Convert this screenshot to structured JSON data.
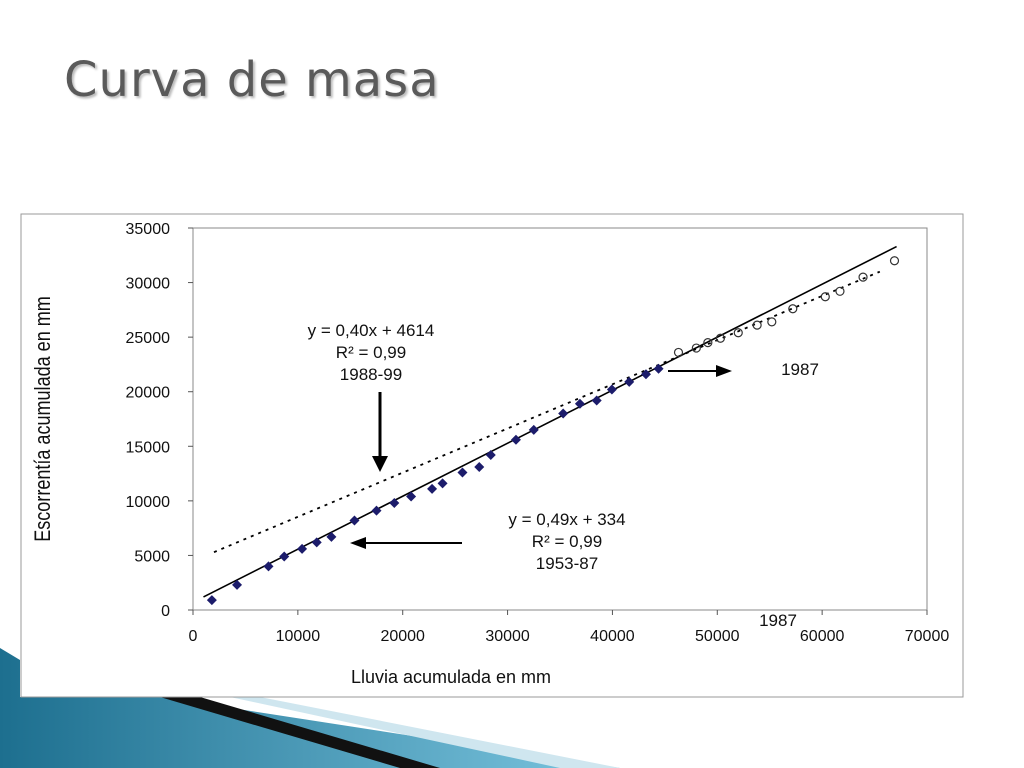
{
  "title": "Curva de masa",
  "chart_data": {
    "type": "scatter",
    "xlabel": "Lluvia acumulada en mm",
    "ylabel": "Escorrentía acumulada en mm",
    "xlim": [
      0,
      70000
    ],
    "ylim": [
      0,
      35000
    ],
    "xticks": [
      0,
      10000,
      20000,
      30000,
      40000,
      50000,
      60000,
      70000
    ],
    "yticks": [
      0,
      5000,
      10000,
      15000,
      20000,
      25000,
      30000,
      35000
    ],
    "series": [
      {
        "marker": "diamond",
        "color": "#1c1c6b",
        "x": [
          1800,
          4200,
          7200,
          8700,
          10400,
          11800,
          13200,
          15400,
          17500,
          19200,
          20800,
          22800,
          23800,
          25700,
          27300,
          28400,
          30800,
          32500,
          35300,
          36900,
          38500,
          39950,
          41600,
          43200,
          44400
        ],
        "values": [
          900,
          2300,
          4000,
          4900,
          5600,
          6200,
          6700,
          8200,
          9100,
          9800,
          10400,
          11100,
          11600,
          12600,
          13100,
          14200,
          15600,
          16500,
          18000,
          18900,
          19200,
          20200,
          20900,
          21600,
          22100
        ]
      },
      {
        "marker": "circle",
        "color": "#333333",
        "x": [
          46300,
          48000,
          49100,
          50300,
          52000,
          53800,
          55200,
          57200,
          60300,
          61700,
          63900,
          66900
        ],
        "values": [
          23600,
          24000,
          24500,
          24900,
          25400,
          26100,
          26400,
          27600,
          28700,
          29200,
          30500,
          32000
        ]
      }
    ],
    "trendlines": [
      {
        "style": "solid",
        "x": [
          1000,
          67100
        ],
        "values": [
          1200,
          33300
        ]
      },
      {
        "style": "dotted",
        "x": [
          2000,
          65500
        ],
        "values": [
          5300,
          31000
        ]
      }
    ],
    "annotations": [
      [
        "y = 0,40x + 4614",
        "R² = 0,99",
        "1988-99"
      ],
      [
        "y = 0,49x + 334",
        "R² = 0,99",
        "1953-87"
      ],
      [
        "1987"
      ],
      [
        "1987"
      ]
    ]
  }
}
